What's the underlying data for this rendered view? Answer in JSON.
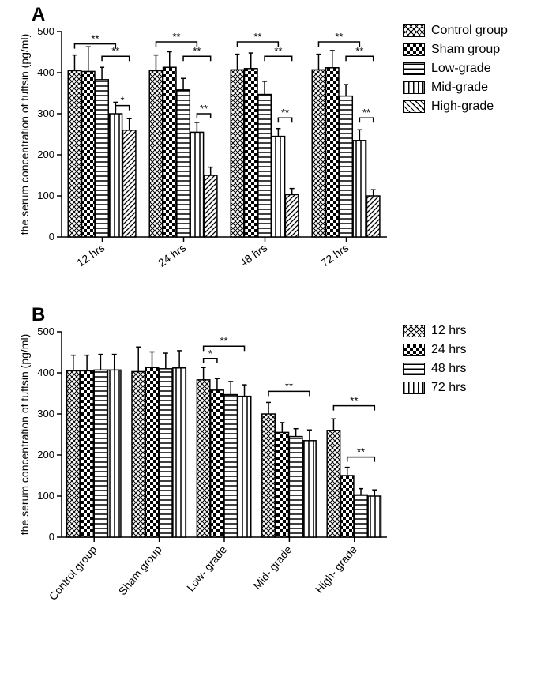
{
  "panelA": {
    "label": "A",
    "type": "bar",
    "ylabel": "the serum concentration of tuftsin (pg/ml)",
    "ylim": [
      0,
      500
    ],
    "ytick_step": 100,
    "bar_stroke": "#000000",
    "bar_fill": "#ffffff",
    "background_color": "#ffffff",
    "label_fontsize": 14,
    "categories": [
      "12 hrs",
      "24 hrs",
      "48 hrs",
      "72 hrs"
    ],
    "series": [
      {
        "name": "Control group",
        "pattern": "crosshatch",
        "values": [
          405,
          405,
          407,
          407
        ],
        "err": [
          38,
          38,
          38,
          38
        ]
      },
      {
        "name": "Sham group",
        "pattern": "checker",
        "values": [
          403,
          413,
          410,
          412
        ],
        "err": [
          60,
          38,
          38,
          42
        ]
      },
      {
        "name": "Low-grade",
        "pattern": "hstripe",
        "values": [
          383,
          358,
          347,
          343
        ],
        "err": [
          30,
          28,
          32,
          28
        ]
      },
      {
        "name": "Mid-grade",
        "pattern": "vstripe",
        "values": [
          300,
          255,
          245,
          235
        ],
        "err": [
          28,
          24,
          19,
          26
        ]
      },
      {
        "name": "High-grade",
        "pattern": "diag",
        "values": [
          260,
          150,
          103,
          100
        ],
        "err": [
          28,
          20,
          15,
          15
        ]
      }
    ],
    "sig": [
      {
        "group": 0,
        "from": 0,
        "to": 3,
        "y": 470,
        "label": "**"
      },
      {
        "group": 0,
        "from": 2,
        "to": 4,
        "y": 440,
        "label": "**"
      },
      {
        "group": 0,
        "from": 3,
        "to": 4,
        "y": 320,
        "label": "*"
      },
      {
        "group": 1,
        "from": 0,
        "to": 3,
        "y": 475,
        "label": "**"
      },
      {
        "group": 1,
        "from": 2,
        "to": 4,
        "y": 440,
        "label": "**"
      },
      {
        "group": 1,
        "from": 3,
        "to": 4,
        "y": 300,
        "label": "**"
      },
      {
        "group": 2,
        "from": 0,
        "to": 3,
        "y": 475,
        "label": "**"
      },
      {
        "group": 2,
        "from": 2,
        "to": 4,
        "y": 440,
        "label": "**"
      },
      {
        "group": 2,
        "from": 3,
        "to": 4,
        "y": 290,
        "label": "**"
      },
      {
        "group": 3,
        "from": 0,
        "to": 3,
        "y": 475,
        "label": "**"
      },
      {
        "group": 3,
        "from": 2,
        "to": 4,
        "y": 440,
        "label": "**"
      },
      {
        "group": 3,
        "from": 3,
        "to": 4,
        "y": 290,
        "label": "**"
      }
    ]
  },
  "panelB": {
    "label": "B",
    "type": "bar",
    "ylabel": "the serum concentration of tuftsin (pg/ml)",
    "ylim": [
      0,
      500
    ],
    "ytick_step": 100,
    "bar_stroke": "#000000",
    "bar_fill": "#ffffff",
    "background_color": "#ffffff",
    "label_fontsize": 14,
    "categories": [
      "Control group",
      "Sham group",
      "Low- grade",
      "Mid- grade",
      "High- grade"
    ],
    "series": [
      {
        "name": "12 hrs",
        "pattern": "crosshatch",
        "values": [
          405,
          403,
          383,
          300,
          260
        ],
        "err": [
          38,
          60,
          30,
          28,
          28
        ]
      },
      {
        "name": "24 hrs",
        "pattern": "checker",
        "values": [
          405,
          413,
          358,
          255,
          150
        ],
        "err": [
          38,
          38,
          28,
          24,
          20
        ]
      },
      {
        "name": "48 hrs",
        "pattern": "hstripe",
        "values": [
          407,
          410,
          347,
          245,
          103
        ],
        "err": [
          38,
          38,
          32,
          19,
          15
        ]
      },
      {
        "name": "72 hrs",
        "pattern": "vstripe",
        "values": [
          407,
          412,
          343,
          235,
          100
        ],
        "err": [
          38,
          42,
          28,
          26,
          15
        ]
      }
    ],
    "sig": [
      {
        "group": 2,
        "from": 0,
        "to": 1,
        "y": 435,
        "label": "*"
      },
      {
        "group": 2,
        "from": 0,
        "to": 3,
        "y": 465,
        "label": "**"
      },
      {
        "group": 3,
        "from": 0,
        "to": 3,
        "y": 355,
        "label": "**"
      },
      {
        "group": 4,
        "from": 0,
        "to": 3,
        "y": 320,
        "label": "**"
      },
      {
        "group": 4,
        "from": 1,
        "to": 3,
        "y": 195,
        "label": "**"
      }
    ]
  }
}
